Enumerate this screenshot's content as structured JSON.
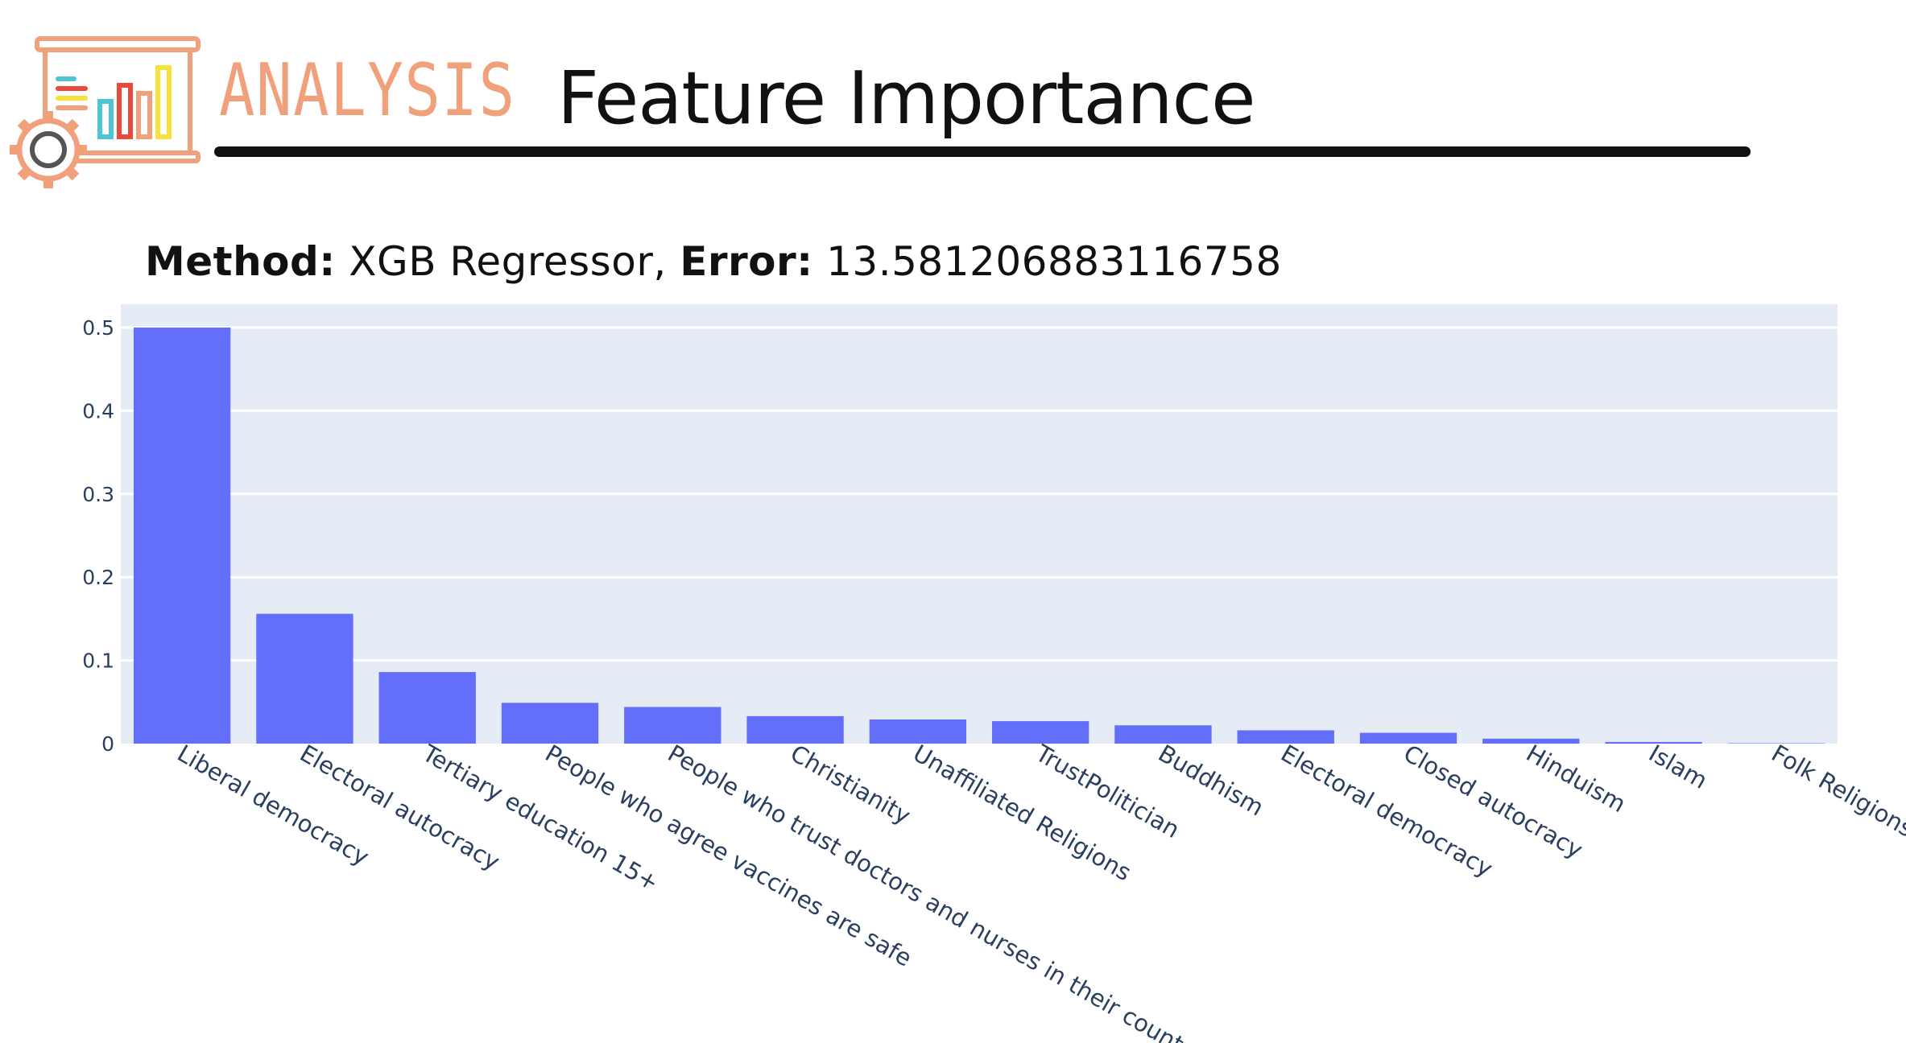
{
  "header": {
    "section_label": "ANALYSIS",
    "title": "Feature Importance",
    "logo_icon": "analysis-presentation-gear-icon"
  },
  "method": {
    "method_label": "Method:",
    "method_value": "XGB Regressor,",
    "error_label": "Error:",
    "error_value": "13.581206883116758"
  },
  "colors": {
    "bar": "#636efa",
    "plot_bg": "#e5ecf6",
    "grid": "#ffffff",
    "tick_text": "#2a3f5f",
    "accent": "#f0a07a"
  },
  "chart_data": {
    "type": "bar",
    "categories": [
      "Liberal democracy",
      "Electoral autocracy",
      "Tertiary education 15+",
      "People who agree vaccines are safe",
      "People who trust doctors and nurses in their country",
      "Christianity",
      "Unaffiliated Religions",
      "TrustPolitician",
      "Buddhism",
      "Electoral democracy",
      "Closed autocracy",
      "Hinduism",
      "Islam",
      "Folk Religions"
    ],
    "values": [
      0.5,
      0.156,
      0.086,
      0.049,
      0.044,
      0.033,
      0.029,
      0.027,
      0.022,
      0.016,
      0.013,
      0.006,
      0.002,
      0.0005
    ],
    "ylim": [
      0,
      0.5
    ],
    "yticks": [
      0,
      0.1,
      0.2,
      0.3,
      0.4,
      0.5
    ],
    "ytick_labels": [
      "0",
      "0.1",
      "0.2",
      "0.3",
      "0.4",
      "0.5"
    ],
    "grid": true,
    "legend": "none",
    "xlabel": "",
    "ylabel": ""
  }
}
